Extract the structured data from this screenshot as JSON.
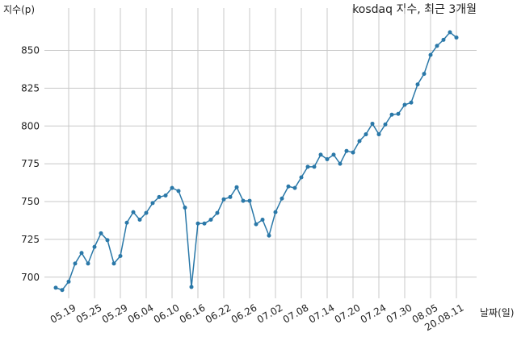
{
  "chart_data": {
    "type": "line",
    "title": "kosdaq 지수, 최근 3개월",
    "y_label": "지수(p)",
    "x_label": "날짜(일)",
    "categories": [
      null,
      null,
      "05.19",
      null,
      null,
      null,
      "05.25",
      null,
      null,
      null,
      "05.29",
      null,
      null,
      null,
      "06.04",
      null,
      null,
      null,
      "06.10",
      null,
      null,
      null,
      "06.16",
      null,
      null,
      null,
      "06.22",
      null,
      null,
      null,
      "06.26",
      null,
      null,
      null,
      "07.02",
      null,
      null,
      null,
      "07.08",
      null,
      null,
      null,
      "07.14",
      null,
      null,
      null,
      "07.20",
      null,
      null,
      null,
      "07.24",
      null,
      null,
      null,
      "07.30",
      null,
      null,
      null,
      "08.05",
      null,
      null,
      null,
      "20.08.11"
    ],
    "series": [
      {
        "color": "#2a78a8",
        "values": [
          693,
          691.5,
          697,
          709,
          716,
          709,
          720,
          729,
          724.5,
          709,
          714,
          736,
          743,
          738,
          742.5,
          749,
          753,
          754,
          759,
          757,
          746,
          693.5,
          735.5,
          735.5,
          738,
          742.5,
          751.5,
          753,
          759.5,
          750.5,
          750.5,
          735,
          738,
          727.5,
          743,
          752,
          760,
          759,
          766,
          773,
          773,
          781,
          778,
          781,
          775,
          783.5,
          782.5,
          790,
          794.5,
          801.5,
          794.5,
          801,
          807.5,
          808,
          814,
          815.5,
          827.5,
          834.5,
          847,
          853,
          857,
          862,
          858.5
        ]
      }
    ],
    "ylim": [
      686,
      878
    ],
    "yticks": [
      700,
      725,
      750,
      775,
      800,
      825,
      850
    ],
    "grid": true
  }
}
